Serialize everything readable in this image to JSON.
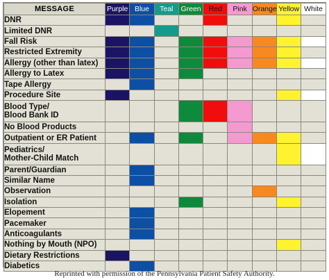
{
  "header": {
    "message": "MESSAGE"
  },
  "columns": [
    {
      "key": "purple",
      "label": "Purple",
      "color": "#1b1464",
      "text_color": "#ffffff"
    },
    {
      "key": "blue",
      "label": "Blue",
      "color": "#0d4fa5",
      "text_color": "#ffffff"
    },
    {
      "key": "teal",
      "label": "Teal",
      "color": "#139c8c",
      "text_color": "#ffffff"
    },
    {
      "key": "green",
      "label": "Green",
      "color": "#0f8a3c",
      "text_color": "#ffffff"
    },
    {
      "key": "red",
      "label": "Red",
      "color": "#f20d0d",
      "text_color": "#111111"
    },
    {
      "key": "pink",
      "label": "Pink",
      "color": "#f59ad0",
      "text_color": "#111111"
    },
    {
      "key": "orange",
      "label": "Orange",
      "color": "#f7891e",
      "text_color": "#111111"
    },
    {
      "key": "yellow",
      "label": "Yellow",
      "color": "#fff22e",
      "text_color": "#111111"
    },
    {
      "key": "white",
      "label": "White",
      "color": "#ffffff",
      "text_color": "#111111"
    }
  ],
  "rows": [
    {
      "label": "DNR",
      "lines": 1,
      "colors": [
        "purple",
        "blue",
        "red",
        "yellow"
      ]
    },
    {
      "label": "Limited DNR",
      "lines": 1,
      "colors": [
        "teal"
      ]
    },
    {
      "label": "Fall Risk",
      "lines": 1,
      "colors": [
        "purple",
        "blue",
        "green",
        "red",
        "pink",
        "orange",
        "yellow",
        "white"
      ]
    },
    {
      "label": "Restricted Extremity",
      "lines": 1,
      "colors": [
        "purple",
        "blue",
        "green",
        "red",
        "pink",
        "orange",
        "yellow"
      ]
    },
    {
      "label": "Allergy (other than latex)",
      "lines": 1,
      "colors": [
        "purple",
        "blue",
        "green",
        "red",
        "pink",
        "orange",
        "yellow",
        "white"
      ]
    },
    {
      "label": "Allergy to Latex",
      "lines": 1,
      "colors": [
        "purple",
        "blue",
        "green"
      ]
    },
    {
      "label": "Tape Allergy",
      "lines": 1,
      "colors": [
        "blue"
      ]
    },
    {
      "label": "Procedure Site",
      "lines": 1,
      "colors": [
        "purple",
        "yellow",
        "white"
      ]
    },
    {
      "label": "Blood Type/\nBlood Bank ID",
      "lines": 2,
      "colors": [
        "green",
        "red",
        "pink"
      ]
    },
    {
      "label": "No Blood Products",
      "lines": 1,
      "colors": [
        "pink"
      ]
    },
    {
      "label": "Outpatient or ER Patient",
      "lines": 1,
      "colors": [
        "blue",
        "green",
        "pink",
        "orange",
        "yellow"
      ]
    },
    {
      "label": "Pediatrics/\nMother-Child Match",
      "lines": 2,
      "colors": [
        "yellow",
        "white"
      ]
    },
    {
      "label": "Parent/Guardian",
      "lines": 1,
      "colors": [
        "blue"
      ]
    },
    {
      "label": "Similar Name",
      "lines": 1,
      "colors": [
        "blue"
      ]
    },
    {
      "label": "Observation",
      "lines": 1,
      "colors": [
        "orange"
      ]
    },
    {
      "label": "Isolation",
      "lines": 1,
      "colors": [
        "green",
        "yellow"
      ]
    },
    {
      "label": "Elopement",
      "lines": 1,
      "colors": [
        "blue"
      ]
    },
    {
      "label": "Pacemaker",
      "lines": 1,
      "colors": [
        "blue"
      ]
    },
    {
      "label": "Anticoagulants",
      "lines": 1,
      "colors": [
        "blue"
      ]
    },
    {
      "label": "Nothing by Mouth (NPO)",
      "lines": 1,
      "colors": [
        "yellow"
      ]
    },
    {
      "label": "Dietary Restrictions",
      "lines": 1,
      "colors": [
        "purple"
      ]
    },
    {
      "label": "Diabetics",
      "lines": 1,
      "colors": [
        "blue"
      ]
    }
  ],
  "caption": "Reprinted with permission of the Pennsylvania Patient Safety Authority."
}
